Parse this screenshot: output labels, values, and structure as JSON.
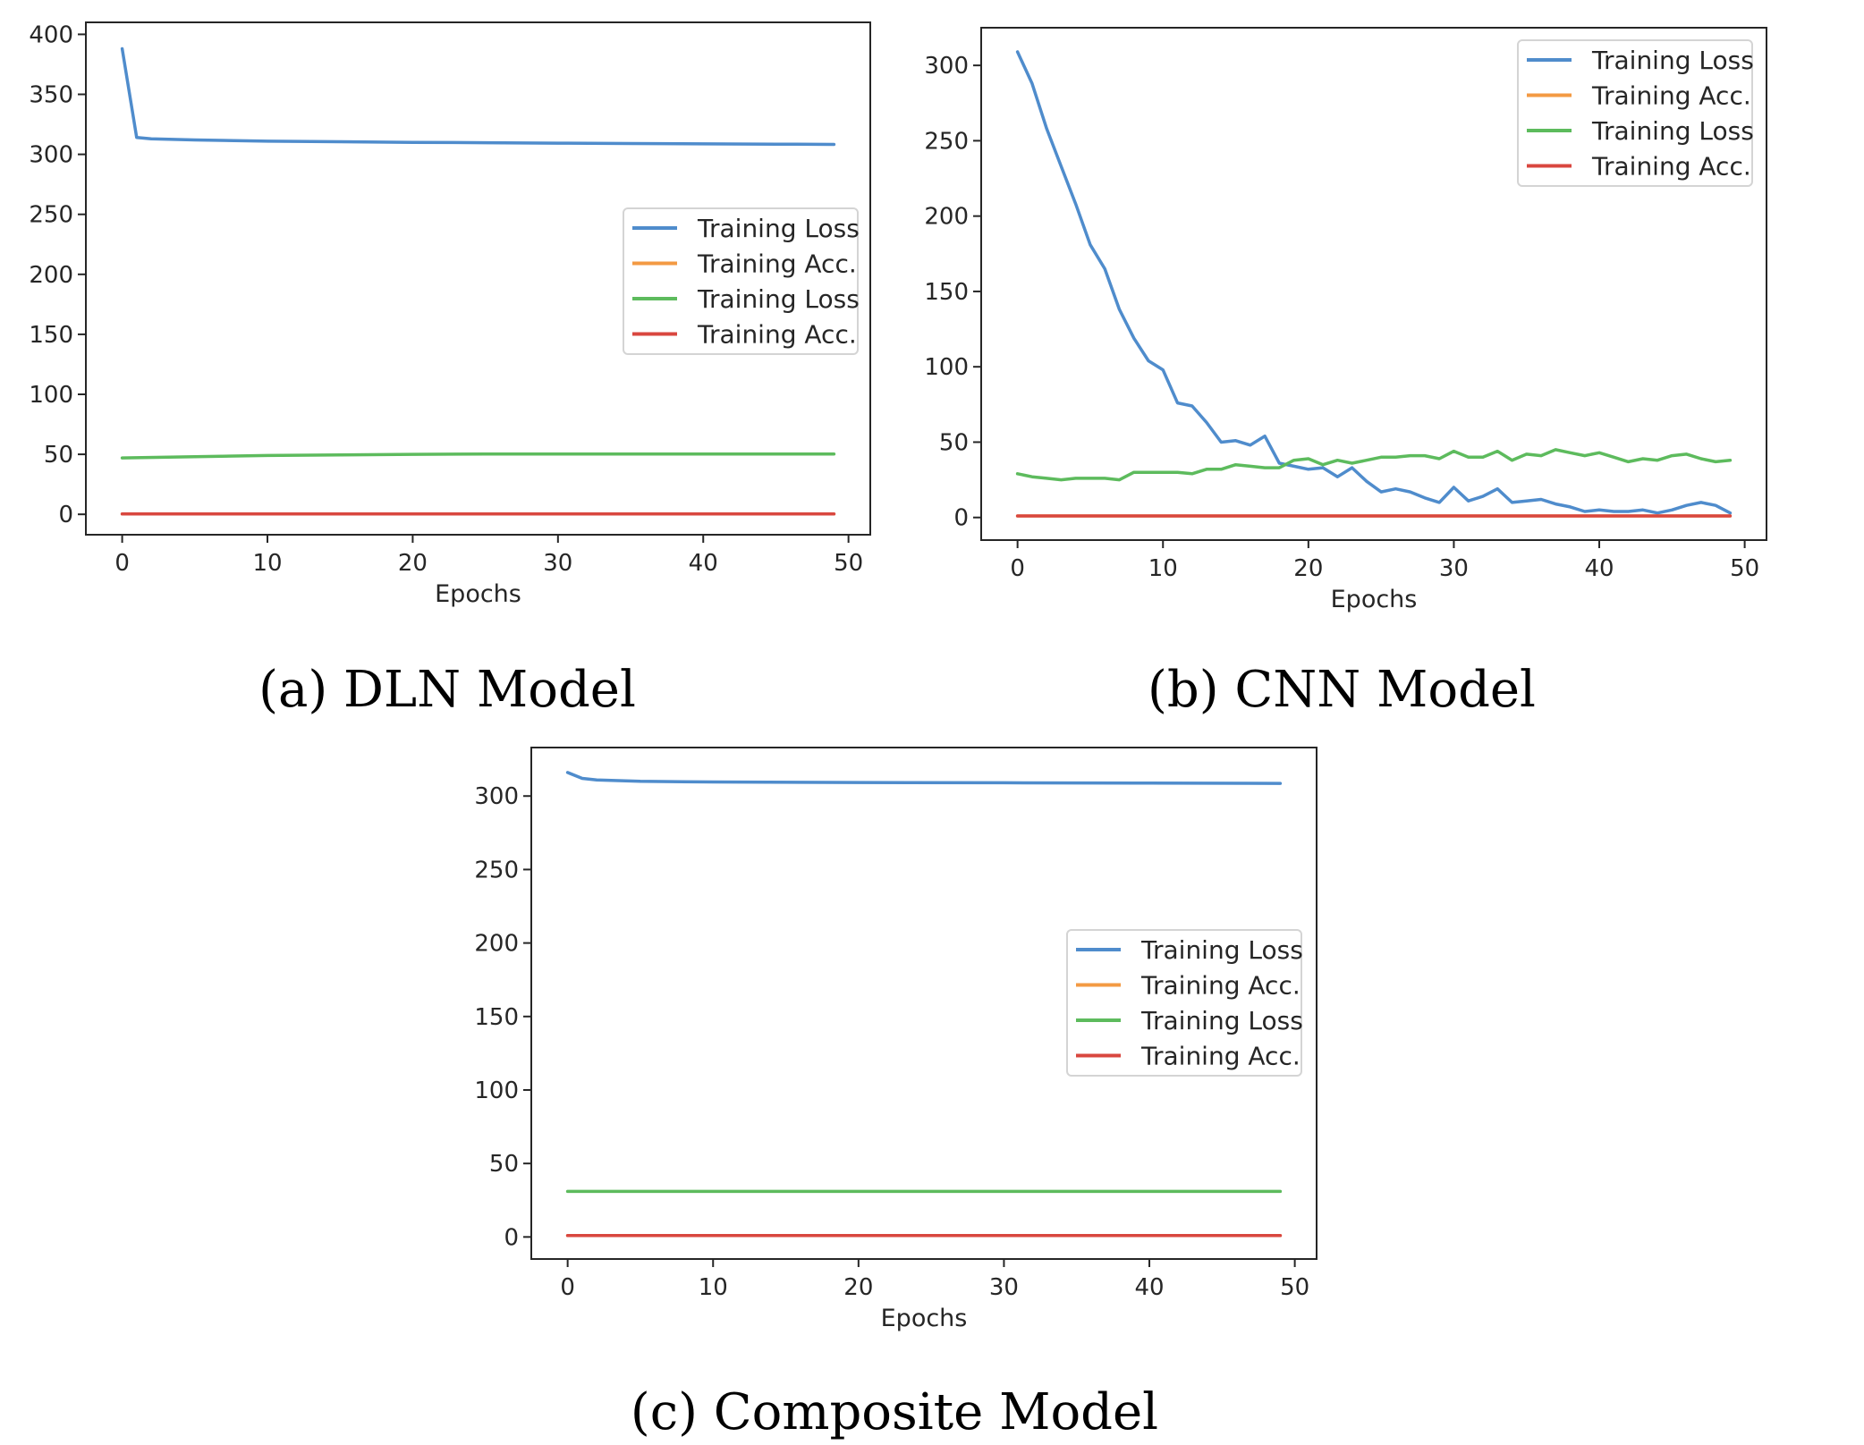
{
  "colors": {
    "blue": "#4f8ccc",
    "orange": "#f39a43",
    "green": "#5dbb5d",
    "red": "#d9473f"
  },
  "chart_data": [
    {
      "type": "line",
      "caption": "(a) DLN Model",
      "title": "",
      "xlabel": "Epochs",
      "ylabel": "",
      "xlim": [
        -2.5,
        51.5
      ],
      "ylim": [
        -17,
        410
      ],
      "xticks": [
        0,
        10,
        20,
        30,
        40,
        50
      ],
      "yticks": [
        0,
        50,
        100,
        150,
        200,
        250,
        300,
        350,
        400
      ],
      "legend": "center-right",
      "grid": false,
      "series": [
        {
          "name": "Training Loss",
          "color": "blue",
          "x": [
            0,
            1,
            2,
            5,
            10,
            15,
            20,
            25,
            30,
            35,
            40,
            45,
            49
          ],
          "y": [
            388,
            314,
            313,
            312,
            311,
            310.5,
            310,
            309.7,
            309.3,
            309,
            308.7,
            308.5,
            308.3
          ]
        },
        {
          "name": "Training Acc.",
          "color": "orange",
          "x": [
            0,
            49
          ],
          "y": [
            0.4,
            0.4
          ]
        },
        {
          "name": "Training Loss",
          "color": "green",
          "x": [
            0,
            5,
            10,
            15,
            20,
            25,
            30,
            35,
            40,
            45,
            49
          ],
          "y": [
            47,
            48,
            49,
            49.5,
            50,
            50.2,
            50.3,
            50.3,
            50.3,
            50.3,
            50.3
          ]
        },
        {
          "name": "Training Acc.",
          "color": "red",
          "x": [
            0,
            49
          ],
          "y": [
            0.4,
            0.4
          ]
        }
      ]
    },
    {
      "type": "line",
      "caption": "(b) CNN Model",
      "title": "",
      "xlabel": "Epochs",
      "ylabel": "",
      "xlim": [
        -2.5,
        51.5
      ],
      "ylim": [
        -15,
        325
      ],
      "xticks": [
        0,
        10,
        20,
        30,
        40,
        50
      ],
      "yticks": [
        0,
        50,
        100,
        150,
        200,
        250,
        300
      ],
      "legend": "top-right",
      "grid": false,
      "series": [
        {
          "name": "Training Loss",
          "color": "blue",
          "x": [
            0,
            1,
            2,
            3,
            4,
            5,
            6,
            7,
            8,
            9,
            10,
            11,
            12,
            13,
            14,
            15,
            16,
            17,
            18,
            19,
            20,
            21,
            22,
            23,
            24,
            25,
            26,
            27,
            28,
            29,
            30,
            31,
            32,
            33,
            34,
            35,
            36,
            37,
            38,
            39,
            40,
            41,
            42,
            43,
            44,
            45,
            46,
            47,
            48,
            49
          ],
          "y": [
            309,
            288,
            258,
            233,
            208,
            181,
            165,
            138,
            119,
            104,
            98,
            76,
            74,
            63,
            50,
            51,
            48,
            54,
            36,
            34,
            32,
            33,
            27,
            33,
            24,
            17,
            19,
            17,
            13,
            10,
            20,
            11,
            14,
            19,
            10,
            11,
            12,
            9,
            7,
            4,
            5,
            4,
            4,
            5,
            3,
            5,
            8,
            10,
            8,
            3
          ]
        },
        {
          "name": "Training Acc.",
          "color": "orange",
          "x": [
            0,
            49
          ],
          "y": [
            1,
            1
          ]
        },
        {
          "name": "Training Loss",
          "color": "green",
          "x": [
            0,
            1,
            2,
            3,
            4,
            5,
            6,
            7,
            8,
            9,
            10,
            11,
            12,
            13,
            14,
            15,
            16,
            17,
            18,
            19,
            20,
            21,
            22,
            23,
            24,
            25,
            26,
            27,
            28,
            29,
            30,
            31,
            32,
            33,
            34,
            35,
            36,
            37,
            38,
            39,
            40,
            41,
            42,
            43,
            44,
            45,
            46,
            47,
            48,
            49
          ],
          "y": [
            29,
            27,
            26,
            25,
            26,
            26,
            26,
            25,
            30,
            30,
            30,
            30,
            29,
            32,
            32,
            35,
            34,
            33,
            33,
            38,
            39,
            35,
            38,
            36,
            38,
            40,
            40,
            41,
            41,
            39,
            44,
            40,
            40,
            44,
            38,
            42,
            41,
            45,
            43,
            41,
            43,
            40,
            37,
            39,
            38,
            41,
            42,
            39,
            37,
            38
          ]
        },
        {
          "name": "Training Acc.",
          "color": "red",
          "x": [
            0,
            49
          ],
          "y": [
            1,
            1
          ]
        }
      ]
    },
    {
      "type": "line",
      "caption": "(c) Composite Model",
      "title": "",
      "xlabel": "Epochs",
      "ylabel": "",
      "xlim": [
        -2.5,
        51.5
      ],
      "ylim": [
        -15,
        333
      ],
      "xticks": [
        0,
        10,
        20,
        30,
        40,
        50
      ],
      "yticks": [
        0,
        50,
        100,
        150,
        200,
        250,
        300
      ],
      "legend": "center-right",
      "grid": false,
      "series": [
        {
          "name": "Training Loss",
          "color": "blue",
          "x": [
            0,
            1,
            2,
            5,
            10,
            20,
            30,
            40,
            49
          ],
          "y": [
            316,
            312,
            311,
            310,
            309.6,
            309.2,
            309,
            308.8,
            308.6
          ]
        },
        {
          "name": "Training Acc.",
          "color": "orange",
          "x": [
            0,
            49
          ],
          "y": [
            1,
            1
          ]
        },
        {
          "name": "Training Loss",
          "color": "green",
          "x": [
            0,
            49
          ],
          "y": [
            31,
            31
          ]
        },
        {
          "name": "Training Acc.",
          "color": "red",
          "x": [
            0,
            49
          ],
          "y": [
            1,
            1
          ]
        }
      ]
    }
  ]
}
